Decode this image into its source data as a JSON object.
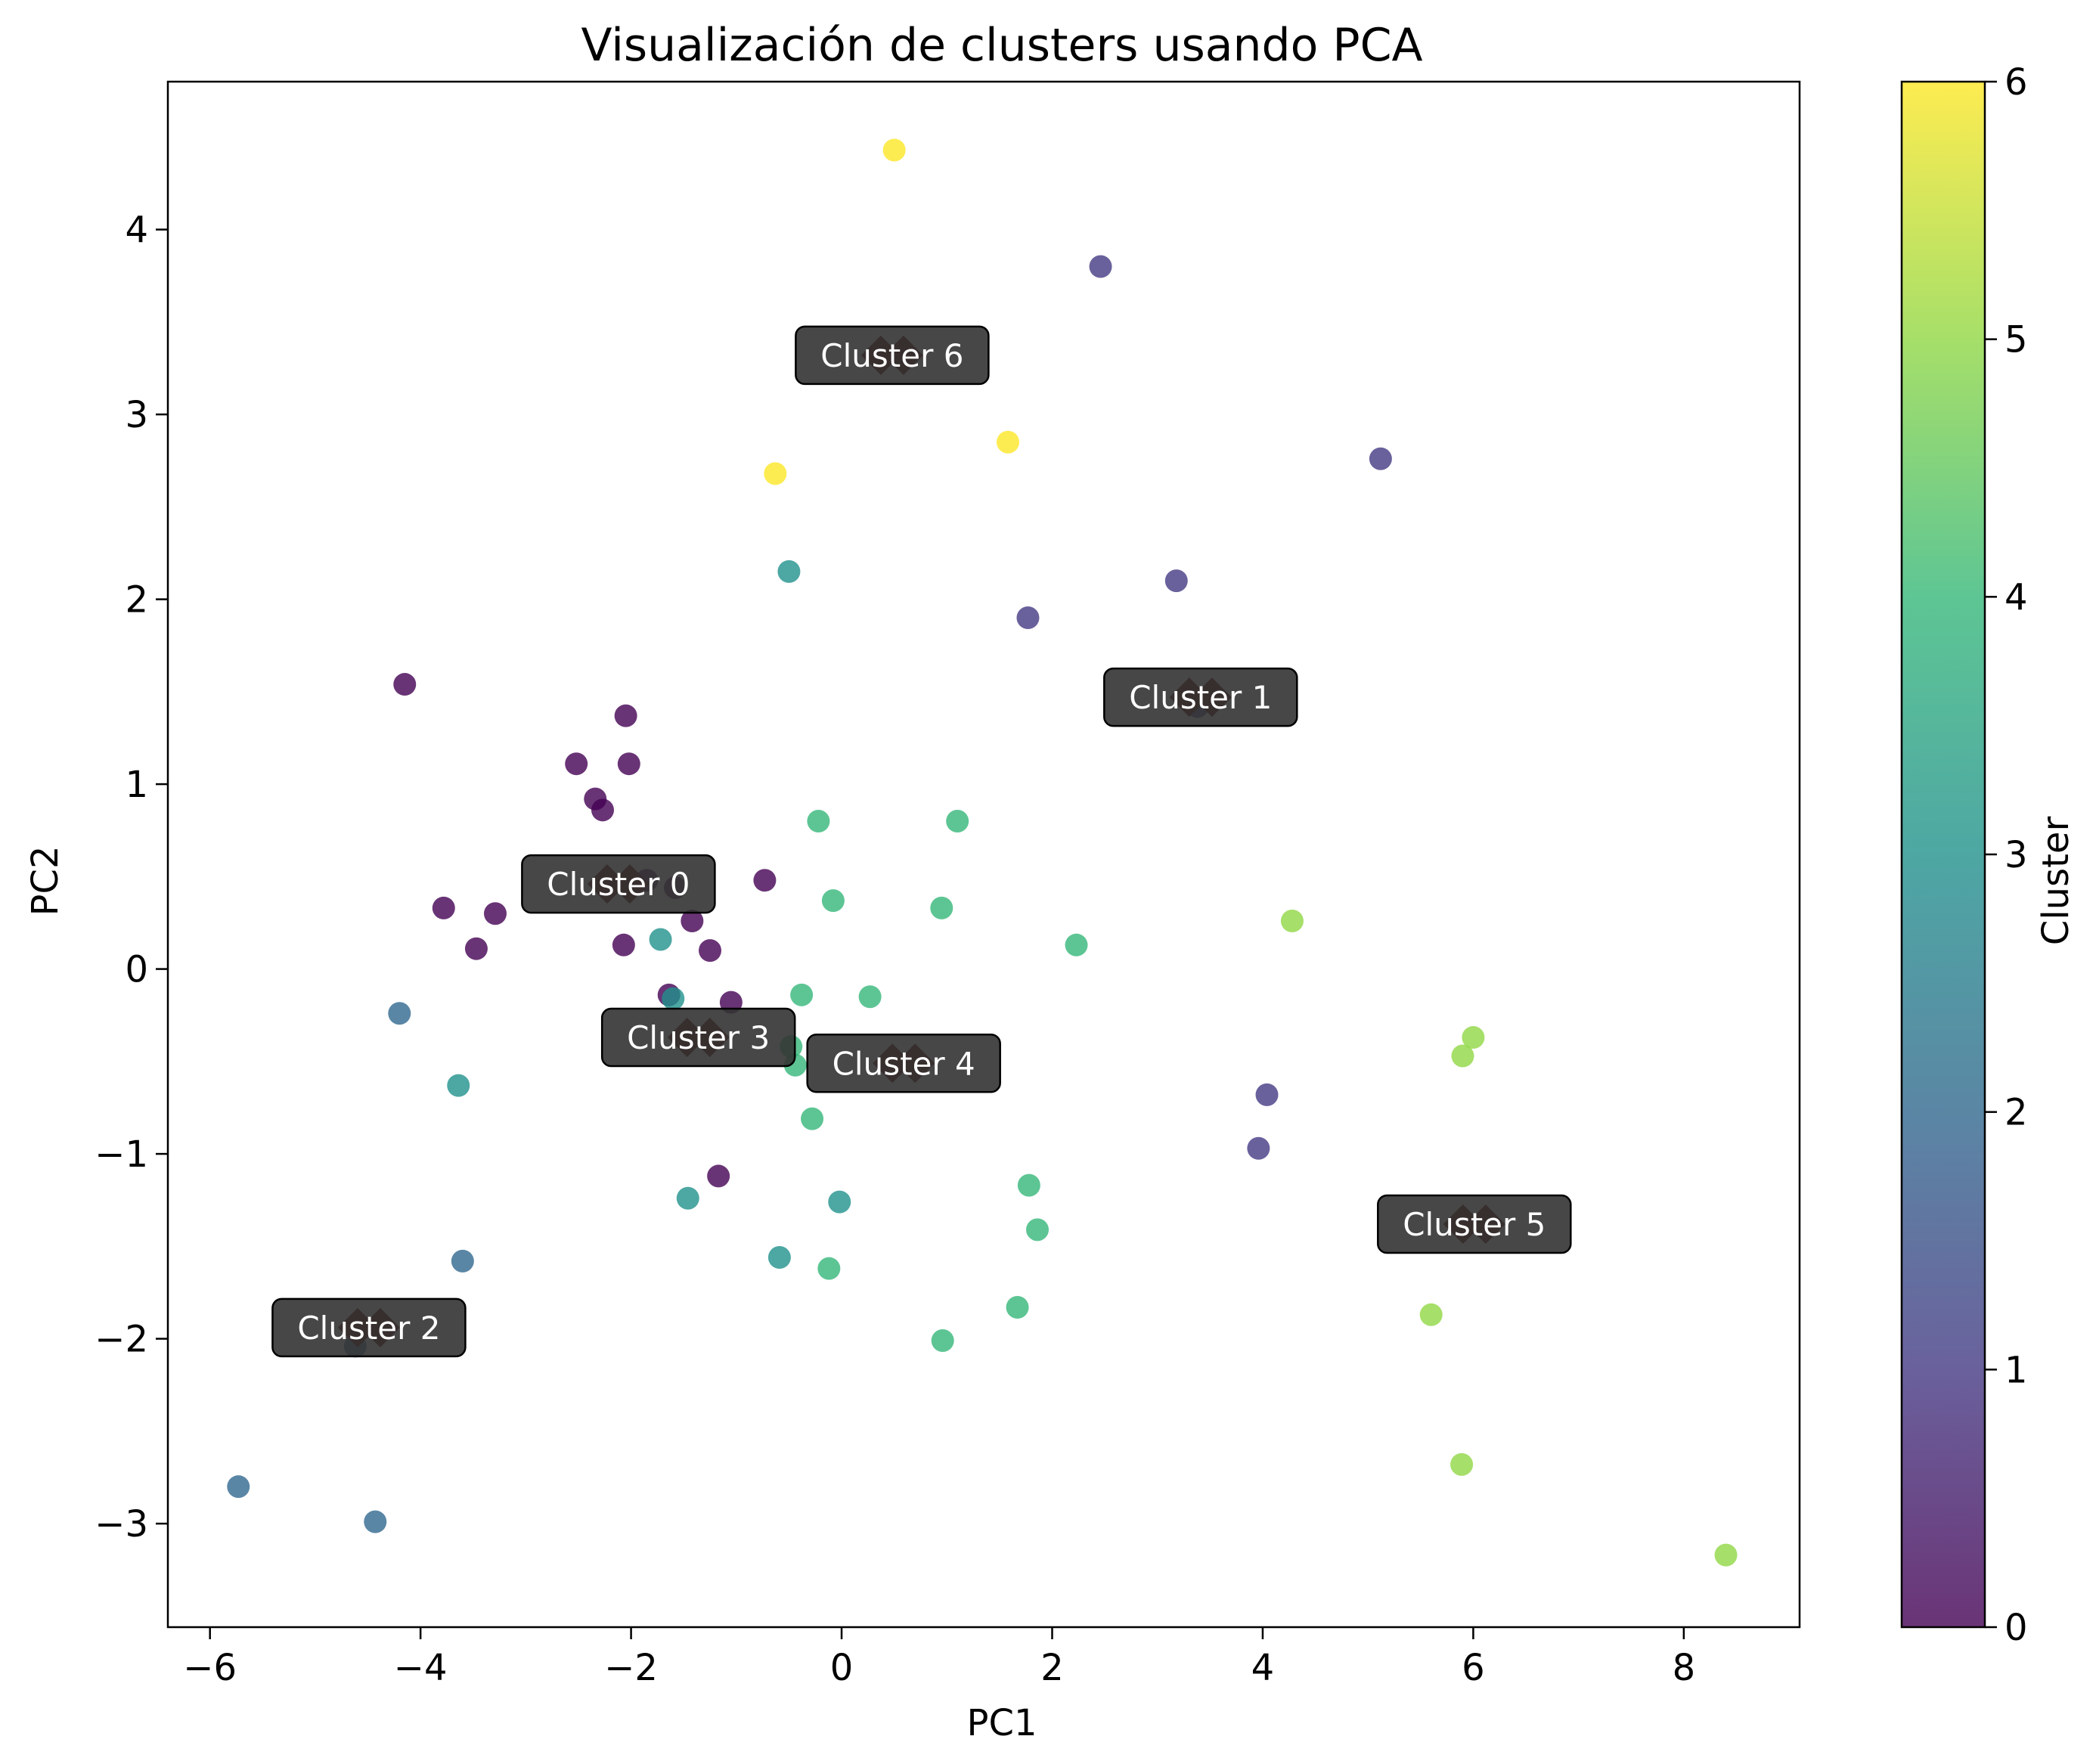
{
  "colors": {
    "viridis": [
      "#440154",
      "#443983",
      "#31688e",
      "#21918c",
      "#35b779",
      "#90d743",
      "#fde725"
    ],
    "centroid": "#5a0000",
    "label_box": "#333333"
  },
  "chart_data": {
    "type": "scatter",
    "title": "Visualización de clusters usando PCA",
    "xlabel": "PC1",
    "ylabel": "PC2",
    "xlim": [
      -6.4,
      9.1
    ],
    "ylim": [
      -3.56,
      4.8
    ],
    "xticks": [
      -6,
      -4,
      -2,
      0,
      2,
      4,
      6,
      8
    ],
    "yticks": [
      -3,
      -2,
      -1,
      0,
      1,
      2,
      3,
      4
    ],
    "xtick_labels": [
      "−6",
      "−4",
      "−2",
      "0",
      "2",
      "4",
      "6",
      "8"
    ],
    "ytick_labels": [
      "−3",
      "−2",
      "−1",
      "0",
      "1",
      "2",
      "3",
      "4"
    ],
    "grid": false,
    "colorbar": {
      "label": "Cluster",
      "min": 0,
      "max": 6,
      "ticks": [
        0,
        1,
        2,
        3,
        4,
        5,
        6
      ],
      "tick_labels": [
        "0",
        "1",
        "2",
        "3",
        "4",
        "5",
        "6"
      ]
    },
    "points": [
      {
        "x": -4.15,
        "y": 1.54,
        "c": 0
      },
      {
        "x": -2.05,
        "y": 1.37,
        "c": 0
      },
      {
        "x": -2.52,
        "y": 1.11,
        "c": 0
      },
      {
        "x": -2.02,
        "y": 1.11,
        "c": 0
      },
      {
        "x": -2.34,
        "y": 0.92,
        "c": 0
      },
      {
        "x": -2.27,
        "y": 0.86,
        "c": 0
      },
      {
        "x": -1.85,
        "y": 0.48,
        "c": 0
      },
      {
        "x": -1.58,
        "y": 0.44,
        "c": 0
      },
      {
        "x": -0.73,
        "y": 0.48,
        "c": 0
      },
      {
        "x": -3.78,
        "y": 0.33,
        "c": 0
      },
      {
        "x": -3.29,
        "y": 0.3,
        "c": 0
      },
      {
        "x": -1.42,
        "y": 0.26,
        "c": 0
      },
      {
        "x": -3.47,
        "y": 0.11,
        "c": 0
      },
      {
        "x": -2.07,
        "y": 0.13,
        "c": 0
      },
      {
        "x": -1.25,
        "y": 0.1,
        "c": 0
      },
      {
        "x": -1.64,
        "y": -0.14,
        "c": 0
      },
      {
        "x": -1.05,
        "y": -0.18,
        "c": 0
      },
      {
        "x": -1.17,
        "y": -1.12,
        "c": 0
      },
      {
        "x": 2.46,
        "y": 3.8,
        "c": 1
      },
      {
        "x": 5.12,
        "y": 2.76,
        "c": 1
      },
      {
        "x": 3.18,
        "y": 2.1,
        "c": 1
      },
      {
        "x": 1.77,
        "y": 1.9,
        "c": 1
      },
      {
        "x": 4.04,
        "y": -0.68,
        "c": 1
      },
      {
        "x": 3.96,
        "y": -0.97,
        "c": 1
      },
      {
        "x": 3.38,
        "y": 1.42,
        "c": 1
      },
      {
        "x": -4.2,
        "y": -0.24,
        "c": 2
      },
      {
        "x": -3.6,
        "y": -1.58,
        "c": 2
      },
      {
        "x": -4.62,
        "y": -2.04,
        "c": 2
      },
      {
        "x": -5.73,
        "y": -2.8,
        "c": 2
      },
      {
        "x": -4.43,
        "y": -2.99,
        "c": 2
      },
      {
        "x": -0.5,
        "y": 2.15,
        "c": 3
      },
      {
        "x": -1.72,
        "y": 0.16,
        "c": 3
      },
      {
        "x": -1.6,
        "y": -0.16,
        "c": 3
      },
      {
        "x": -3.64,
        "y": -0.63,
        "c": 3
      },
      {
        "x": -1.46,
        "y": -1.24,
        "c": 3
      },
      {
        "x": -0.02,
        "y": -1.26,
        "c": 3
      },
      {
        "x": -0.59,
        "y": -1.56,
        "c": 3
      },
      {
        "x": -0.22,
        "y": 0.8,
        "c": 4
      },
      {
        "x": 1.1,
        "y": 0.8,
        "c": 4
      },
      {
        "x": -0.08,
        "y": 0.37,
        "c": 4
      },
      {
        "x": 0.95,
        "y": 0.33,
        "c": 4
      },
      {
        "x": 2.23,
        "y": 0.13,
        "c": 4
      },
      {
        "x": -0.38,
        "y": -0.14,
        "c": 4
      },
      {
        "x": 0.27,
        "y": -0.15,
        "c": 4
      },
      {
        "x": -0.48,
        "y": -0.42,
        "c": 4
      },
      {
        "x": -0.44,
        "y": -0.52,
        "c": 4
      },
      {
        "x": -0.28,
        "y": -0.81,
        "c": 4
      },
      {
        "x": 1.78,
        "y": -1.17,
        "c": 4
      },
      {
        "x": 1.86,
        "y": -1.41,
        "c": 4
      },
      {
        "x": -0.12,
        "y": -1.62,
        "c": 4
      },
      {
        "x": 1.67,
        "y": -1.83,
        "c": 4
      },
      {
        "x": 0.96,
        "y": -2.01,
        "c": 4
      },
      {
        "x": 4.28,
        "y": 0.26,
        "c": 5
      },
      {
        "x": 6.0,
        "y": -0.37,
        "c": 5
      },
      {
        "x": 5.9,
        "y": -0.47,
        "c": 5
      },
      {
        "x": 5.6,
        "y": -1.87,
        "c": 5
      },
      {
        "x": 5.89,
        "y": -2.68,
        "c": 5
      },
      {
        "x": 8.4,
        "y": -3.17,
        "c": 5
      },
      {
        "x": 0.5,
        "y": 4.43,
        "c": 6
      },
      {
        "x": 1.58,
        "y": 2.85,
        "c": 6
      },
      {
        "x": -0.63,
        "y": 2.68,
        "c": 6
      }
    ],
    "centroids": [
      {
        "label": "Cluster 0",
        "x": -2.12,
        "y": 0.46
      },
      {
        "label": "Cluster 1",
        "x": 3.41,
        "y": 1.47
      },
      {
        "label": "Cluster 2",
        "x": -4.49,
        "y": -1.94
      },
      {
        "label": "Cluster 3",
        "x": -1.36,
        "y": -0.37
      },
      {
        "label": "Cluster 4",
        "x": 0.59,
        "y": -0.51
      },
      {
        "label": "Cluster 5",
        "x": 6.01,
        "y": -1.38
      },
      {
        "label": "Cluster 6",
        "x": 0.48,
        "y": 3.32
      }
    ]
  }
}
